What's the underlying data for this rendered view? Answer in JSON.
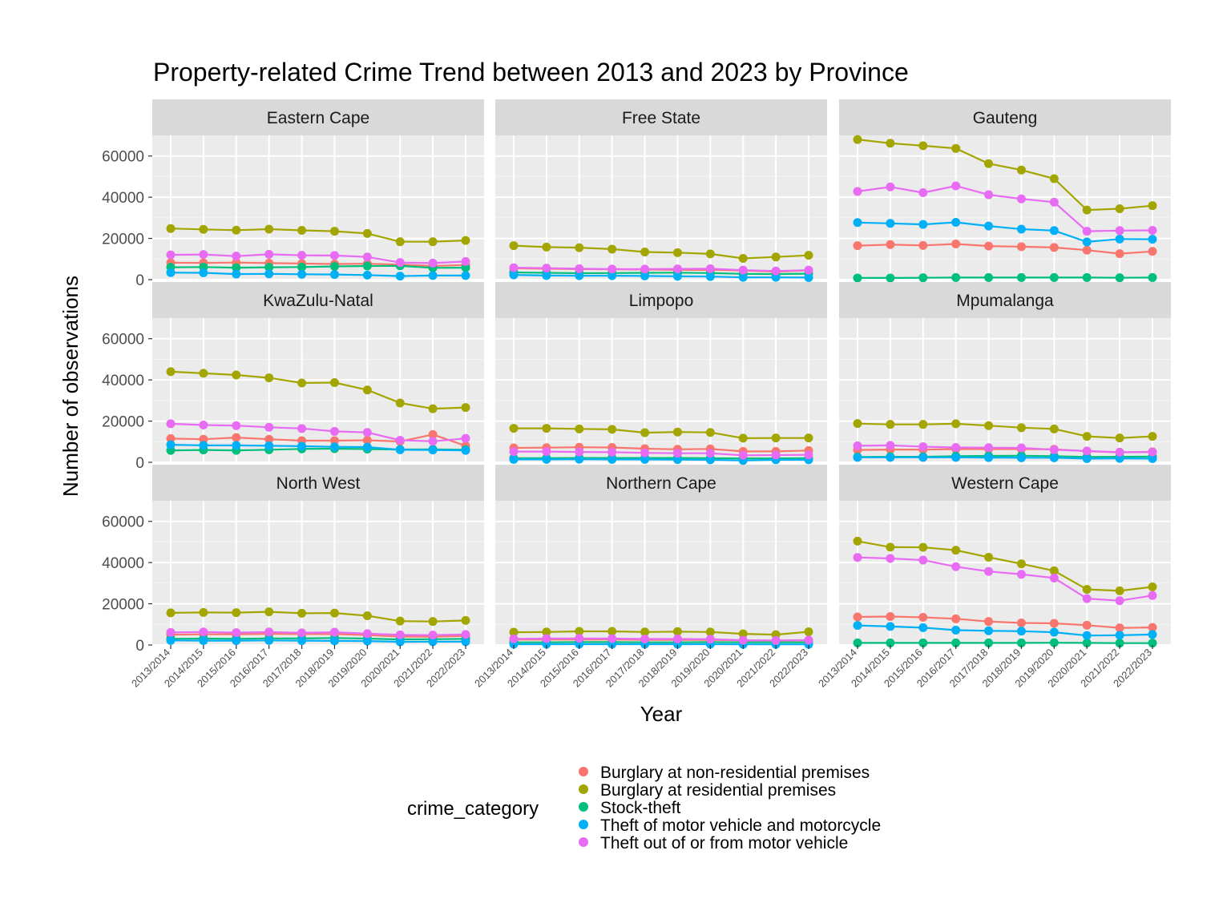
{
  "chart_data": {
    "type": "line",
    "title": "Property-related Crime Trend between 2013 and 2023 by Province",
    "xlabel": "Year",
    "ylabel": "Number of observations",
    "ylim": [
      0,
      70000
    ],
    "yticks": [
      0,
      20000,
      40000,
      60000
    ],
    "categories": [
      "2013/2014",
      "2014/2015",
      "2015/2016",
      "2016/2017",
      "2017/2018",
      "2018/2019",
      "2019/2020",
      "2020/2021",
      "2021/2022",
      "2022/2023"
    ],
    "legend": {
      "title": "crime_category",
      "entries": [
        {
          "name": "Burglary at non-residential premises",
          "color": "#F8766D"
        },
        {
          "name": "Burglary at residential premises",
          "color": "#A3A500"
        },
        {
          "name": "Stock-theft",
          "color": "#00BF7D"
        },
        {
          "name": "Theft of motor vehicle and motorcycle",
          "color": "#00B0F6"
        },
        {
          "name": "Theft out of or from motor vehicle",
          "color": "#E76BF3"
        }
      ]
    },
    "panels": [
      {
        "name": "Eastern Cape",
        "series": [
          {
            "name": "Burglary at non-residential premises",
            "values": [
              8200,
              8100,
              8300,
              8000,
              7800,
              7600,
              7700,
              7300,
              6600,
              7100
            ]
          },
          {
            "name": "Burglary at residential premises",
            "values": [
              24800,
              24400,
              24000,
              24500,
              23900,
              23500,
              22400,
              18400,
              18400,
              19000
            ]
          },
          {
            "name": "Stock-theft",
            "values": [
              6000,
              6100,
              5800,
              6000,
              6100,
              6400,
              6600,
              6700,
              5700,
              5800
            ]
          },
          {
            "name": "Theft of motor vehicle and motorcycle",
            "values": [
              3400,
              3300,
              2700,
              2800,
              2600,
              2500,
              2200,
              1700,
              2000,
              2000
            ]
          },
          {
            "name": "Theft out of or from motor vehicle",
            "values": [
              12000,
              12200,
              11400,
              12300,
              11800,
              11700,
              11000,
              8300,
              8000,
              8800
            ]
          }
        ]
      },
      {
        "name": "Free State",
        "series": [
          {
            "name": "Burglary at non-residential premises",
            "values": [
              5500,
              5300,
              5100,
              5000,
              4900,
              4700,
              4700,
              4400,
              3800,
              4500
            ]
          },
          {
            "name": "Burglary at residential premises",
            "values": [
              16500,
              15800,
              15500,
              14800,
              13400,
              13100,
              12500,
              10300,
              11000,
              11800
            ]
          },
          {
            "name": "Stock-theft",
            "values": [
              3500,
              3300,
              3100,
              3200,
              3300,
              3400,
              3200,
              2800,
              2700,
              2900
            ]
          },
          {
            "name": "Theft of motor vehicle and motorcycle",
            "values": [
              2300,
              2000,
              1900,
              1900,
              1800,
              1600,
              1500,
              1100,
              1100,
              1000
            ]
          },
          {
            "name": "Theft out of or from motor vehicle",
            "values": [
              5800,
              5600,
              5300,
              5100,
              5100,
              5200,
              5300,
              4600,
              4200,
              4600
            ]
          }
        ]
      },
      {
        "name": "Gauteng",
        "series": [
          {
            "name": "Burglary at non-residential premises",
            "values": [
              16500,
              17000,
              16600,
              17300,
              16300,
              16000,
              15600,
              14300,
              12600,
              13700
            ]
          },
          {
            "name": "Burglary at residential premises",
            "values": [
              68000,
              66200,
              65000,
              63700,
              56300,
              53200,
              49000,
              33800,
              34400,
              35900
            ]
          },
          {
            "name": "Stock-theft",
            "values": [
              800,
              800,
              900,
              1000,
              1000,
              1000,
              1000,
              1000,
              900,
              1000
            ]
          },
          {
            "name": "Theft of motor vehicle and motorcycle",
            "values": [
              27700,
              27300,
              26800,
              27800,
              26000,
              24500,
              23800,
              18300,
              19700,
              19600
            ]
          },
          {
            "name": "Theft out of or from motor vehicle",
            "values": [
              42800,
              45000,
              42200,
              45500,
              41200,
              39200,
              37600,
              23500,
              23800,
              23900
            ]
          }
        ]
      },
      {
        "name": "KwaZulu-Natal",
        "series": [
          {
            "name": "Burglary at non-residential premises",
            "values": [
              11500,
              11200,
              12000,
              11200,
              10500,
              10500,
              10700,
              10100,
              13500,
              8000
            ]
          },
          {
            "name": "Burglary at residential premises",
            "values": [
              44000,
              43200,
              42400,
              41000,
              38500,
              38700,
              35100,
              28800,
              26000,
              26600
            ]
          },
          {
            "name": "Stock-theft",
            "values": [
              5800,
              6000,
              5800,
              6100,
              6500,
              6600,
              6400,
              6200,
              6300,
              6100
            ]
          },
          {
            "name": "Theft of motor vehicle and motorcycle",
            "values": [
              8500,
              8200,
              8200,
              8000,
              7800,
              7500,
              7400,
              6100,
              6000,
              5800
            ]
          },
          {
            "name": "Theft out of or from motor vehicle",
            "values": [
              18700,
              18100,
              17800,
              17000,
              16400,
              15000,
              14500,
              10700,
              10200,
              11600
            ]
          }
        ]
      },
      {
        "name": "Limpopo",
        "series": [
          {
            "name": "Burglary at non-residential premises",
            "values": [
              7000,
              7100,
              7300,
              7200,
              6600,
              6300,
              6500,
              5300,
              5300,
              5700
            ]
          },
          {
            "name": "Burglary at residential premises",
            "values": [
              16500,
              16500,
              16200,
              16000,
              14400,
              14700,
              14500,
              11700,
              11800,
              11800
            ]
          },
          {
            "name": "Stock-theft",
            "values": [
              2000,
              2000,
              2100,
              2100,
              2100,
              2100,
              2000,
              1900,
              1900,
              2000
            ]
          },
          {
            "name": "Theft of motor vehicle and motorcycle",
            "values": [
              1400,
              1400,
              1500,
              1400,
              1400,
              1300,
              1200,
              900,
              1200,
              1200
            ]
          },
          {
            "name": "Theft out of or from motor vehicle",
            "values": [
              5200,
              5200,
              5000,
              4900,
              4600,
              4400,
              4400,
              3400,
              3500,
              3600
            ]
          }
        ]
      },
      {
        "name": "Mpumalanga",
        "series": [
          {
            "name": "Burglary at non-residential premises",
            "values": [
              6000,
              6200,
              6200,
              6400,
              6400,
              6400,
              6300,
              5400,
              4800,
              5100
            ]
          },
          {
            "name": "Burglary at residential premises",
            "values": [
              18800,
              18400,
              18400,
              18700,
              17800,
              16800,
              16200,
              12600,
              11800,
              12600
            ]
          },
          {
            "name": "Stock-theft",
            "values": [
              2600,
              2700,
              2700,
              3000,
              3100,
              3200,
              3000,
              2600,
              2700,
              2800
            ]
          },
          {
            "name": "Theft of motor vehicle and motorcycle",
            "values": [
              2400,
              2400,
              2400,
              2400,
              2300,
              2200,
              2200,
              1800,
              1900,
              1800
            ]
          },
          {
            "name": "Theft out of or from motor vehicle",
            "values": [
              8000,
              8200,
              7600,
              7200,
              7100,
              7000,
              6100,
              5500,
              4900,
              5000
            ]
          }
        ]
      },
      {
        "name": "North West",
        "series": [
          {
            "name": "Burglary at non-residential premises",
            "values": [
              5000,
              5200,
              5200,
              5400,
              5300,
              5300,
              4800,
              4100,
              4000,
              4400
            ]
          },
          {
            "name": "Burglary at residential premises",
            "values": [
              15600,
              15800,
              15700,
              16100,
              15400,
              15500,
              14200,
              11600,
              11400,
              11900
            ]
          },
          {
            "name": "Stock-theft",
            "values": [
              3000,
              3100,
              3000,
              3200,
              3200,
              3400,
              3100,
              2700,
              2800,
              3000
            ]
          },
          {
            "name": "Theft of motor vehicle and motorcycle",
            "values": [
              2200,
              2100,
              2100,
              2200,
              2100,
              2000,
              1900,
              1500,
              1600,
              1600
            ]
          },
          {
            "name": "Theft out of or from motor vehicle",
            "values": [
              6100,
              6300,
              6000,
              6300,
              5900,
              6200,
              5500,
              4900,
              4800,
              5100
            ]
          }
        ]
      },
      {
        "name": "Northern Cape",
        "series": [
          {
            "name": "Burglary at non-residential premises",
            "values": [
              2600,
              2600,
              2600,
              2700,
              2500,
              2500,
              2500,
              2200,
              2100,
              2300
            ]
          },
          {
            "name": "Burglary at residential premises",
            "values": [
              6200,
              6300,
              6600,
              6600,
              6300,
              6500,
              6300,
              5400,
              5000,
              6400
            ]
          },
          {
            "name": "Stock-theft",
            "values": [
              1300,
              1300,
              1400,
              1400,
              1300,
              1300,
              1400,
              1300,
              1300,
              1300
            ]
          },
          {
            "name": "Theft of motor vehicle and motorcycle",
            "values": [
              400,
              400,
              400,
              400,
              400,
              400,
              400,
              300,
              300,
              300
            ]
          },
          {
            "name": "Theft out of or from motor vehicle",
            "values": [
              3000,
              3100,
              3200,
              3100,
              2900,
              2900,
              2800,
              2300,
              2200,
              2400
            ]
          }
        ]
      },
      {
        "name": "Western Cape",
        "series": [
          {
            "name": "Burglary at non-residential premises",
            "values": [
              13600,
              13800,
              13400,
              12700,
              11400,
              10700,
              10500,
              9600,
              8300,
              8500
            ]
          },
          {
            "name": "Burglary at residential premises",
            "values": [
              50400,
              47500,
              47400,
              46000,
              42600,
              39400,
              36000,
              27000,
              26300,
              28200
            ]
          },
          {
            "name": "Stock-theft",
            "values": [
              1000,
              1000,
              1000,
              1000,
              1000,
              1000,
              1100,
              1000,
              900,
              900
            ]
          },
          {
            "name": "Theft of motor vehicle and motorcycle",
            "values": [
              9500,
              9000,
              8400,
              7200,
              6900,
              6700,
              6200,
              4600,
              4700,
              5100
            ]
          },
          {
            "name": "Theft out of or from motor vehicle",
            "values": [
              42500,
              42000,
              41200,
              38000,
              35700,
              34300,
              32500,
              22500,
              21500,
              24000
            ]
          }
        ]
      }
    ]
  }
}
